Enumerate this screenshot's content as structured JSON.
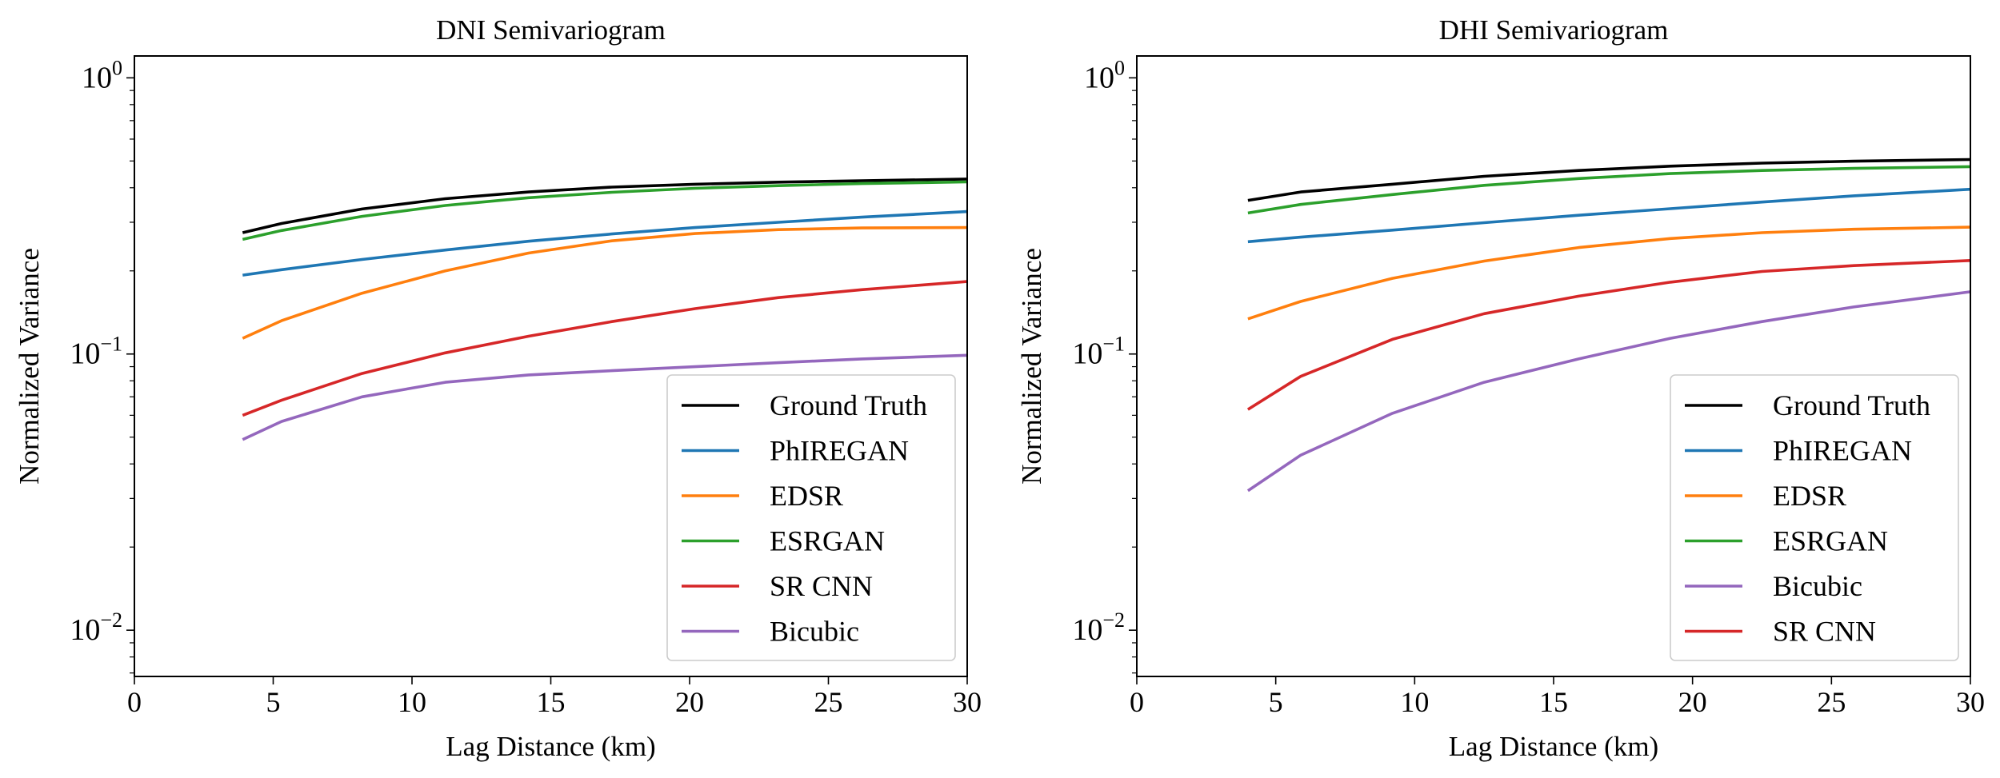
{
  "chart_data": [
    {
      "type": "line",
      "title": "DNI Semivariogram",
      "xlabel": "Lag Distance (km)",
      "ylabel": "Normalized Variance",
      "xlim": [
        0,
        30
      ],
      "ylim": [
        0.0068,
        1.2
      ],
      "yscale": "log",
      "grid": false,
      "legend_position": "lower-right",
      "x_ticks": [
        "0",
        "5",
        "10",
        "15",
        "20",
        "25",
        "30"
      ],
      "x_tick_values": [
        0,
        5,
        10,
        15,
        20,
        25,
        30
      ],
      "y_ticks": [
        {
          "base": "10",
          "exp": "0",
          "value": 1
        },
        {
          "base": "10",
          "exp": "−1",
          "value": 0.1
        },
        {
          "base": "10",
          "exp": "−2",
          "value": 0.01
        }
      ],
      "x": [
        3.9,
        5.3,
        8.2,
        11.2,
        14.2,
        17.2,
        20.2,
        23.2,
        26.2,
        30
      ],
      "series": [
        {
          "name": "Ground Truth",
          "color": "#000000",
          "values": [
            0.275,
            0.297,
            0.335,
            0.365,
            0.386,
            0.402,
            0.412,
            0.419,
            0.424,
            0.43
          ]
        },
        {
          "name": "PhIREGAN",
          "color": "#1f77b4",
          "values": [
            0.193,
            0.202,
            0.22,
            0.238,
            0.256,
            0.272,
            0.287,
            0.3,
            0.313,
            0.328
          ]
        },
        {
          "name": "EDSR",
          "color": "#ff7f0e",
          "values": [
            0.114,
            0.132,
            0.166,
            0.2,
            0.232,
            0.257,
            0.273,
            0.282,
            0.286,
            0.287
          ]
        },
        {
          "name": "ESRGAN",
          "color": "#2ca02c",
          "values": [
            0.26,
            0.28,
            0.315,
            0.345,
            0.368,
            0.385,
            0.398,
            0.407,
            0.414,
            0.42
          ]
        },
        {
          "name": "SR CNN",
          "color": "#d62728",
          "values": [
            0.06,
            0.068,
            0.085,
            0.101,
            0.116,
            0.131,
            0.146,
            0.16,
            0.171,
            0.183
          ]
        },
        {
          "name": "Bicubic",
          "color": "#9467bd",
          "values": [
            0.049,
            0.057,
            0.07,
            0.079,
            0.084,
            0.087,
            0.09,
            0.093,
            0.096,
            0.099
          ]
        }
      ]
    },
    {
      "type": "line",
      "title": "DHI Semivariogram",
      "xlabel": "Lag Distance (km)",
      "ylabel": "Normalized Variance",
      "xlim": [
        0,
        30
      ],
      "ylim": [
        0.0068,
        1.2
      ],
      "yscale": "log",
      "grid": false,
      "legend_position": "lower-right",
      "x_ticks": [
        "0",
        "5",
        "10",
        "15",
        "20",
        "25",
        "30"
      ],
      "x_tick_values": [
        0,
        5,
        10,
        15,
        20,
        25,
        30
      ],
      "y_ticks": [
        {
          "base": "10",
          "exp": "0",
          "value": 1
        },
        {
          "base": "10",
          "exp": "−1",
          "value": 0.1
        },
        {
          "base": "10",
          "exp": "−2",
          "value": 0.01
        }
      ],
      "x": [
        4,
        5.9,
        9.2,
        12.5,
        15.9,
        19.2,
        22.5,
        25.8,
        30
      ],
      "series": [
        {
          "name": "Ground Truth",
          "color": "#000000",
          "values": [
            0.36,
            0.386,
            0.412,
            0.44,
            0.462,
            0.479,
            0.491,
            0.499,
            0.506
          ]
        },
        {
          "name": "PhIREGAN",
          "color": "#1f77b4",
          "values": [
            0.255,
            0.265,
            0.281,
            0.299,
            0.318,
            0.336,
            0.355,
            0.374,
            0.395
          ]
        },
        {
          "name": "EDSR",
          "color": "#ff7f0e",
          "values": [
            0.134,
            0.155,
            0.188,
            0.217,
            0.243,
            0.262,
            0.275,
            0.283,
            0.288
          ]
        },
        {
          "name": "ESRGAN",
          "color": "#2ca02c",
          "values": [
            0.324,
            0.348,
            0.378,
            0.408,
            0.432,
            0.45,
            0.462,
            0.47,
            0.477
          ]
        },
        {
          "name": "Bicubic",
          "color": "#9467bd",
          "values": [
            0.032,
            0.043,
            0.061,
            0.079,
            0.096,
            0.114,
            0.131,
            0.148,
            0.168
          ]
        },
        {
          "name": "SR CNN",
          "color": "#d62728",
          "values": [
            0.063,
            0.083,
            0.113,
            0.14,
            0.162,
            0.182,
            0.199,
            0.209,
            0.218
          ]
        }
      ]
    }
  ]
}
